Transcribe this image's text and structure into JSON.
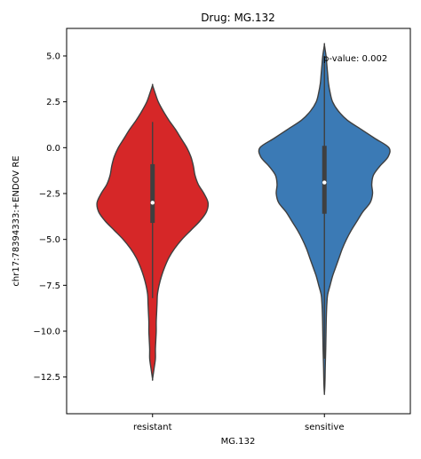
{
  "chart_data": {
    "type": "violin",
    "title": "Drug: MG.132",
    "xlabel": "MG.132",
    "ylabel": "chr17:78394333:+ENDOV RE",
    "annotation": "p-value: 0.002",
    "categories": [
      "resistant",
      "sensitive"
    ],
    "ylim": [
      -14.5,
      6.5
    ],
    "yticks": [
      5.0,
      2.5,
      0.0,
      -2.5,
      -5.0,
      -7.5,
      -10.0,
      -12.5
    ],
    "ytick_labels": [
      "5.0",
      "2.5",
      "0.0",
      "−2.5",
      "−5.0",
      "−7.5",
      "−10.0",
      "−12.5"
    ],
    "grid": false,
    "legend": "none",
    "series": [
      {
        "category": "resistant",
        "color": "#d62728",
        "median": -3.0,
        "q1": -4.1,
        "q3": -0.9,
        "whisker_low": -8.2,
        "whisker_high": 1.4,
        "min": -12.6,
        "max": 3.4,
        "density_y": [
          3.4,
          3.0,
          2.5,
          2.0,
          1.5,
          1.0,
          0.5,
          0.0,
          -0.5,
          -1.0,
          -1.5,
          -2.0,
          -2.5,
          -3.0,
          -3.5,
          -4.0,
          -4.5,
          -5.0,
          -5.5,
          -6.0,
          -6.5,
          -7.0,
          -7.5,
          -8.0,
          -8.5,
          -9.0,
          -9.5,
          -10.0,
          -10.5,
          -11.0,
          -11.5,
          -12.0,
          -12.6
        ],
        "density_halfwidth": [
          0.0,
          0.03,
          0.07,
          0.13,
          0.2,
          0.28,
          0.35,
          0.42,
          0.47,
          0.5,
          0.52,
          0.56,
          0.63,
          0.68,
          0.66,
          0.58,
          0.47,
          0.36,
          0.27,
          0.2,
          0.15,
          0.11,
          0.08,
          0.06,
          0.055,
          0.05,
          0.045,
          0.045,
          0.04,
          0.035,
          0.035,
          0.02,
          0.0
        ]
      },
      {
        "category": "sensitive",
        "color": "#3b7ab5",
        "median": -1.9,
        "q1": -3.6,
        "q3": 0.1,
        "whisker_low": -11.5,
        "whisker_high": 5.0,
        "min": -13.4,
        "max": 5.6,
        "density_y": [
          5.6,
          5.0,
          4.5,
          4.0,
          3.5,
          3.0,
          2.5,
          2.0,
          1.5,
          1.0,
          0.5,
          0.0,
          -0.5,
          -1.0,
          -1.5,
          -2.0,
          -2.5,
          -3.0,
          -3.5,
          -4.0,
          -4.5,
          -5.0,
          -5.5,
          -6.0,
          -6.5,
          -7.0,
          -7.5,
          -8.0,
          -8.5,
          -9.0,
          -9.5,
          -10.0,
          -10.5,
          -11.0,
          -11.5,
          -12.0,
          -12.5,
          -13.0,
          -13.4
        ],
        "density_halfwidth": [
          0.0,
          0.02,
          0.03,
          0.04,
          0.05,
          0.07,
          0.1,
          0.17,
          0.28,
          0.45,
          0.62,
          0.79,
          0.78,
          0.68,
          0.6,
          0.58,
          0.59,
          0.56,
          0.47,
          0.4,
          0.33,
          0.27,
          0.22,
          0.18,
          0.14,
          0.1,
          0.07,
          0.04,
          0.03,
          0.025,
          0.022,
          0.02,
          0.018,
          0.016,
          0.013,
          0.01,
          0.008,
          0.005,
          0.0
        ]
      }
    ]
  }
}
